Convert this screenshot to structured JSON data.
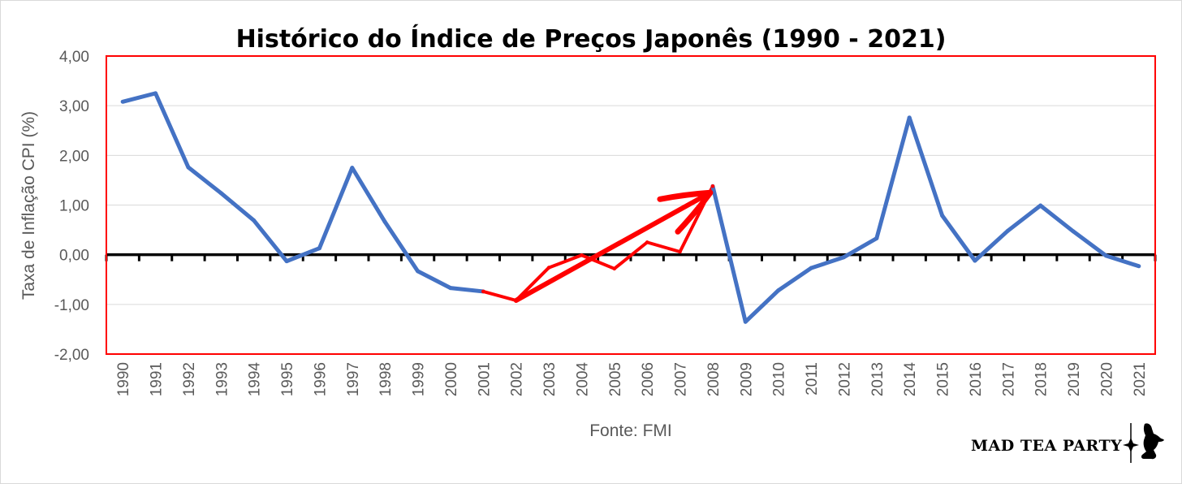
{
  "chart_data": {
    "type": "line",
    "title": "Histórico do Índice de Preços Japonês (1990 - 2021)",
    "xlabel": "Fonte: FMI",
    "ylabel": "Taxa de Inflação CPI (%)",
    "ylim": [
      -2,
      4
    ],
    "yticks": [
      "-2,00",
      "-1,00",
      "0,00",
      "1,00",
      "2,00",
      "3,00",
      "4,00"
    ],
    "ytick_values": [
      -2,
      -1,
      0,
      1,
      2,
      3,
      4
    ],
    "grid": true,
    "categories": [
      "1990",
      "1991",
      "1992",
      "1993",
      "1994",
      "1995",
      "1996",
      "1997",
      "1998",
      "1999",
      "2000",
      "2001",
      "2002",
      "2003",
      "2004",
      "2005",
      "2006",
      "2007",
      "2008",
      "2009",
      "2010",
      "2011",
      "2012",
      "2013",
      "2014",
      "2015",
      "2016",
      "2017",
      "2018",
      "2019",
      "2020",
      "2021"
    ],
    "series": [
      {
        "values": [
          3.08,
          3.25,
          1.76,
          1.24,
          0.69,
          -0.13,
          0.13,
          1.75,
          0.66,
          -0.33,
          -0.67,
          -0.74,
          -0.92,
          -0.26,
          -0.01,
          -0.28,
          0.25,
          0.06,
          1.38,
          -1.35,
          -0.72,
          -0.27,
          -0.05,
          0.33,
          2.76,
          0.79,
          -0.12,
          0.48,
          0.99,
          0.47,
          -0.02,
          -0.23
        ],
        "color": "#4472c4",
        "highlight_color": "#ff0000",
        "highlight_range": [
          "2001",
          "2008"
        ]
      }
    ],
    "annotations": [
      {
        "type": "arrow",
        "from": "2002",
        "to": "2008",
        "color": "#ff0000"
      }
    ]
  },
  "colors": {
    "plot_border": "#ff0000",
    "zero_line": "#000000",
    "grid": "#d9d9d9"
  },
  "brand": {
    "name": "MAD TEA PARTY",
    "icon": "rabbit-logo-icon"
  }
}
